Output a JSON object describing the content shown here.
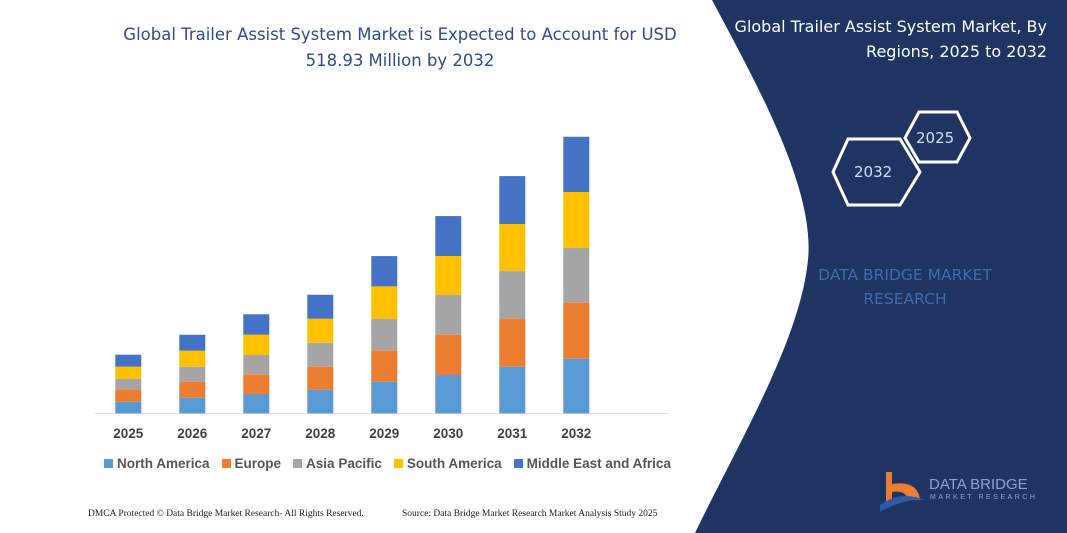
{
  "header": {
    "title": "Global Trailer Assist System Market is Expected to Account for USD 518.93 Million by 2032",
    "side_title": "Global Trailer Assist System Market, By Regions, 2025 to 2032"
  },
  "side_panel": {
    "hex_start": "2025",
    "hex_end": "2032",
    "brand_line1": "DATA BRIDGE MARKET",
    "brand_line2": "RESEARCH",
    "logo_name": "DATA BRIDGE",
    "logo_sub": "MARKET RESEARCH",
    "panel_color": "#1F3462"
  },
  "footer": {
    "left": "DMCA Protected © Data Bridge Market Research-  All Rights Reserved.",
    "right": "Source: Data Bridge Market Research  Market Analysis Study 2025"
  },
  "chart_data": {
    "type": "bar",
    "stacked": true,
    "title": "Global Trailer Assist System Market is Expected to Account for USD 518.93 Million by 2032",
    "categories": [
      "2025",
      "2026",
      "2027",
      "2028",
      "2029",
      "2030",
      "2031",
      "2032"
    ],
    "series": [
      {
        "name": "North America",
        "color": "#5B9BD5",
        "values": [
          21.8,
          29.3,
          36.2,
          44.3,
          59.3,
          71.8,
          87.4,
          102.4
        ]
      },
      {
        "name": "Europe",
        "color": "#ED7D31",
        "values": [
          23.3,
          30.0,
          37.0,
          43.1,
          58.9,
          75.6,
          89.5,
          105.1
        ]
      },
      {
        "name": "Asia Pacific",
        "color": "#A5A5A5",
        "values": [
          19.9,
          28.1,
          36.2,
          45.0,
          58.7,
          74.5,
          90.0,
          102.6
        ]
      },
      {
        "name": "South America",
        "color": "#FFC000",
        "values": [
          22.5,
          30.0,
          38.1,
          45.0,
          61.3,
          73.2,
          88.2,
          105.1
        ]
      },
      {
        "name": "Middle East and Africa",
        "color": "#4472C4",
        "values": [
          22.5,
          30.0,
          38.3,
          45.0,
          56.8,
          75.0,
          90.0,
          103.7
        ]
      }
    ],
    "ylim": [
      0,
      519
    ],
    "grid": false,
    "legend": "bottom",
    "xlabel": "",
    "ylabel": ""
  }
}
